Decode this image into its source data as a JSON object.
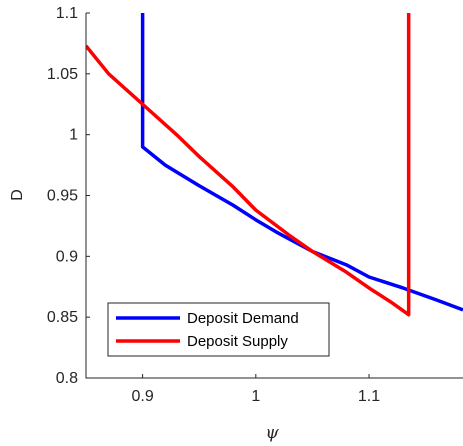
{
  "chart_data": {
    "type": "line",
    "xlabel": "ψ",
    "ylabel": "D",
    "xlim": [
      0.85,
      1.183
    ],
    "ylim": [
      0.8,
      1.1
    ],
    "xticks": [
      0.9,
      1.0,
      1.1
    ],
    "xtick_labels": [
      "0.9",
      "1",
      "1.1"
    ],
    "yticks": [
      0.8,
      0.85,
      0.9,
      0.95,
      1.0,
      1.05,
      1.1
    ],
    "ytick_labels": [
      "0.8",
      "0.85",
      "0.9",
      "0.95",
      "1",
      "1.05",
      "1.1"
    ],
    "grid": false,
    "legend_position": "bottom-left",
    "series": [
      {
        "name": "Deposit Demand",
        "color": "#0000ff",
        "points": [
          [
            0.9,
            1.1
          ],
          [
            0.9,
            0.99
          ],
          [
            0.92,
            0.975
          ],
          [
            0.95,
            0.958
          ],
          [
            0.98,
            0.942
          ],
          [
            1.0,
            0.93
          ],
          [
            1.02,
            0.919
          ],
          [
            1.05,
            0.904
          ],
          [
            1.08,
            0.893
          ],
          [
            1.1,
            0.883
          ],
          [
            1.13,
            0.874
          ],
          [
            1.16,
            0.864
          ],
          [
            1.183,
            0.856
          ]
        ]
      },
      {
        "name": "Deposit Supply",
        "color": "#ff0000",
        "points": [
          [
            0.85,
            1.073
          ],
          [
            0.87,
            1.05
          ],
          [
            0.9,
            1.025
          ],
          [
            0.93,
            1.0
          ],
          [
            0.95,
            0.982
          ],
          [
            0.98,
            0.957
          ],
          [
            1.0,
            0.938
          ],
          [
            1.03,
            0.917
          ],
          [
            1.05,
            0.904
          ],
          [
            1.08,
            0.887
          ],
          [
            1.1,
            0.874
          ],
          [
            1.12,
            0.862
          ],
          [
            1.135,
            0.852
          ],
          [
            1.135,
            1.1
          ]
        ]
      }
    ]
  }
}
